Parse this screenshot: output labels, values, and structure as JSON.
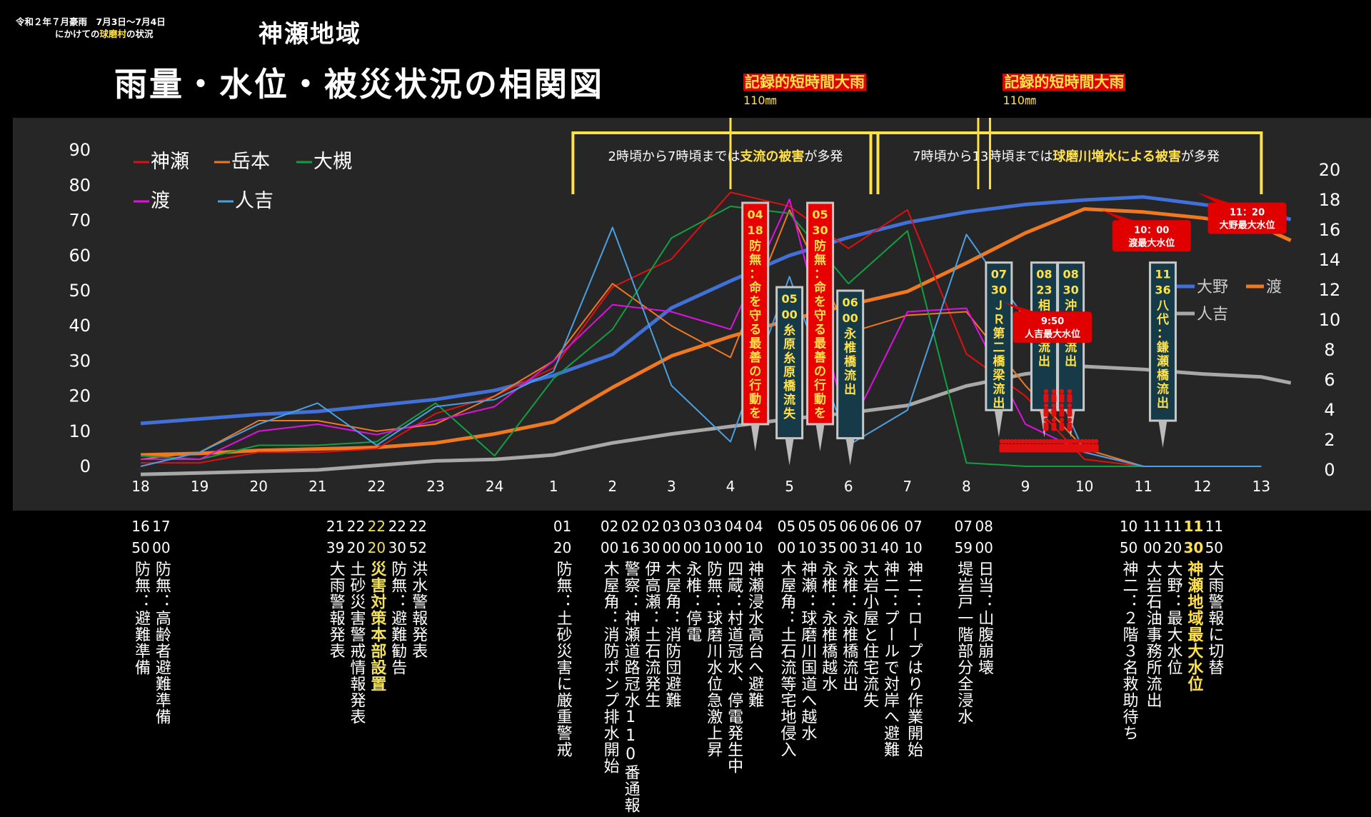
{
  "header": {
    "line1": "令和２年７月豪雨　7月3日～7月4日",
    "line2_prefix": "にかけての",
    "line2_highlight": "球磨村",
    "line2_suffix": "の状況",
    "region": "神瀬地域",
    "title": "雨量・水位・被災状況の相関図"
  },
  "colors": {
    "神瀬": "#e01010",
    "岳本": "#f07820",
    "大槻": "#10a040",
    "渡_rain": "#e010e0",
    "人吉_rain": "#4aa0e0",
    "大野": "#4070d8",
    "渡_level": "#f07820",
    "人吉_level": "#a8a8a8",
    "highlight_yellow": "#ffe14a",
    "callout_red": "#e00000",
    "plot_bg": "#262626"
  },
  "chart_data": {
    "type": "line",
    "x": [
      "18",
      "19",
      "20",
      "21",
      "22",
      "23",
      "24",
      "1",
      "2",
      "3",
      "4",
      "5",
      "6",
      "7",
      "8",
      "9",
      "10",
      "11",
      "12",
      "13"
    ],
    "left_axis": {
      "label": "",
      "ylim": [
        0,
        90
      ],
      "ticks": [
        "0",
        "10",
        "20",
        "30",
        "40",
        "50",
        "60",
        "70",
        "80",
        "90"
      ]
    },
    "right_axis": {
      "label": "",
      "ylim": [
        0,
        21
      ],
      "ticks": [
        "0",
        "2",
        "4",
        "6",
        "8",
        "10",
        "12",
        "14",
        "16",
        "18",
        "20"
      ]
    },
    "rain_series": [
      {
        "name": "神瀬",
        "axis": "left",
        "points": [
          [
            0,
            1
          ],
          [
            1,
            1
          ],
          [
            2,
            4
          ],
          [
            3,
            4
          ],
          [
            4,
            5
          ],
          [
            5,
            15
          ],
          [
            6,
            20
          ],
          [
            7,
            28
          ],
          [
            8,
            51
          ],
          [
            9,
            59
          ],
          [
            10,
            78
          ],
          [
            11,
            74
          ],
          [
            12,
            62
          ],
          [
            13,
            73
          ],
          [
            14,
            32
          ],
          [
            15,
            20
          ],
          [
            16,
            2
          ],
          [
            17,
            0
          ],
          [
            18,
            0
          ],
          [
            19,
            0
          ]
        ]
      },
      {
        "name": "岳本",
        "axis": "left",
        "points": [
          [
            0,
            2
          ],
          [
            1,
            4
          ],
          [
            2,
            13
          ],
          [
            3,
            13
          ],
          [
            4,
            10
          ],
          [
            5,
            12
          ],
          [
            6,
            20
          ],
          [
            7,
            30
          ],
          [
            8,
            52
          ],
          [
            9,
            40
          ],
          [
            10,
            31
          ],
          [
            11,
            73
          ],
          [
            12,
            38
          ],
          [
            13,
            43
          ],
          [
            14,
            44
          ],
          [
            15,
            23
          ],
          [
            16,
            5
          ],
          [
            17,
            0
          ],
          [
            18,
            0
          ],
          [
            19,
            0
          ]
        ]
      },
      {
        "name": "大槻",
        "axis": "left",
        "points": [
          [
            0,
            3
          ],
          [
            1,
            2
          ],
          [
            2,
            6
          ],
          [
            3,
            6
          ],
          [
            4,
            7
          ],
          [
            5,
            18
          ],
          [
            6,
            3
          ],
          [
            7,
            25
          ],
          [
            8,
            39
          ],
          [
            9,
            65
          ],
          [
            10,
            74
          ],
          [
            11,
            72
          ],
          [
            12,
            52
          ],
          [
            13,
            67
          ],
          [
            14,
            1
          ],
          [
            15,
            0
          ],
          [
            16,
            0
          ],
          [
            17,
            0
          ],
          [
            18,
            0
          ],
          [
            19,
            0
          ]
        ]
      },
      {
        "name": "渡",
        "axis": "left",
        "points": [
          [
            0,
            2
          ],
          [
            1,
            2
          ],
          [
            2,
            10
          ],
          [
            3,
            12
          ],
          [
            4,
            9
          ],
          [
            5,
            13
          ],
          [
            6,
            17
          ],
          [
            7,
            30
          ],
          [
            8,
            46
          ],
          [
            9,
            44
          ],
          [
            10,
            39
          ],
          [
            11,
            76
          ],
          [
            12,
            10
          ],
          [
            13,
            44
          ],
          [
            14,
            45
          ],
          [
            15,
            12
          ],
          [
            16,
            4
          ],
          [
            17,
            0
          ],
          [
            18,
            0
          ],
          [
            19,
            0
          ]
        ]
      },
      {
        "name": "人吉",
        "axis": "left",
        "points": [
          [
            0,
            0
          ],
          [
            1,
            4
          ],
          [
            2,
            12
          ],
          [
            3,
            18
          ],
          [
            4,
            6
          ],
          [
            5,
            17
          ],
          [
            6,
            19
          ],
          [
            7,
            27
          ],
          [
            8,
            68
          ],
          [
            9,
            23
          ],
          [
            10,
            7
          ],
          [
            11,
            54
          ],
          [
            12,
            6
          ],
          [
            13,
            16
          ],
          [
            14,
            66
          ],
          [
            15,
            42
          ],
          [
            16,
            4
          ],
          [
            17,
            0
          ],
          [
            18,
            0
          ],
          [
            19,
            0
          ]
        ]
      }
    ],
    "level_series": [
      {
        "name": "大野",
        "axis": "right",
        "points": [
          [
            0,
            3.1
          ],
          [
            1,
            3.4
          ],
          [
            2,
            3.7
          ],
          [
            3,
            3.9
          ],
          [
            4,
            4.3
          ],
          [
            5,
            4.7
          ],
          [
            6,
            5.3
          ],
          [
            7,
            6.3
          ],
          [
            8,
            7.7
          ],
          [
            9,
            10.8
          ],
          [
            10,
            12.6
          ],
          [
            11,
            14.3
          ],
          [
            12,
            15.5
          ],
          [
            13,
            16.5
          ],
          [
            14,
            17.2
          ],
          [
            15,
            17.7
          ],
          [
            16,
            18.0
          ],
          [
            17,
            18.2
          ],
          [
            18,
            17.7
          ],
          [
            19,
            17.2
          ],
          [
            19.5,
            16.7
          ]
        ]
      },
      {
        "name": "渡",
        "axis": "right",
        "points": [
          [
            0,
            1.0
          ],
          [
            1,
            1.1
          ],
          [
            2,
            1.3
          ],
          [
            3,
            1.4
          ],
          [
            4,
            1.5
          ],
          [
            5,
            1.8
          ],
          [
            6,
            2.4
          ],
          [
            7,
            3.2
          ],
          [
            8,
            5.5
          ],
          [
            9,
            7.6
          ],
          [
            10,
            8.9
          ],
          [
            11,
            10.0
          ],
          [
            12,
            11.0
          ],
          [
            13,
            11.9
          ],
          [
            14,
            13.8
          ],
          [
            15,
            15.8
          ],
          [
            16,
            17.4
          ],
          [
            17,
            17.2
          ],
          [
            18,
            16.8
          ],
          [
            19,
            16.2
          ],
          [
            19.5,
            15.3
          ]
        ]
      },
      {
        "name": "人吉",
        "axis": "right",
        "points": [
          [
            0,
            -0.3
          ],
          [
            1,
            -0.2
          ],
          [
            2,
            -0.1
          ],
          [
            3,
            0.0
          ],
          [
            4,
            0.3
          ],
          [
            5,
            0.6
          ],
          [
            6,
            0.7
          ],
          [
            7,
            1.0
          ],
          [
            8,
            1.8
          ],
          [
            9,
            2.4
          ],
          [
            10,
            2.9
          ],
          [
            11,
            3.4
          ],
          [
            12,
            3.8
          ],
          [
            13,
            4.3
          ],
          [
            14,
            5.6
          ],
          [
            15,
            6.4
          ],
          [
            16,
            6.9
          ],
          [
            17,
            6.7
          ],
          [
            18,
            6.4
          ],
          [
            19,
            6.2
          ],
          [
            19.5,
            5.8
          ]
        ]
      }
    ],
    "legend_rain": [
      "神瀬",
      "岳本",
      "大槻",
      "渡",
      "人吉"
    ],
    "legend_level": [
      "大野",
      "渡",
      "人吉"
    ],
    "heavy_rain": [
      {
        "label": "記録的短時間大雨",
        "amount": "110㎜",
        "x": [
          10
        ]
      },
      {
        "label": "記録的短時間大雨",
        "amount": "110㎜",
        "x": [
          14.2,
          14.4
        ]
      }
    ],
    "periods": [
      {
        "pre": "2時頃から7時頃までは",
        "hl": "支流の被害",
        "post": "が多発",
        "x0": 7.45,
        "x1": 12.5
      },
      {
        "pre": "7時頃から13時頃までは",
        "hl": "球磨川増水による被害",
        "post": "が多発",
        "x0": 12.5,
        "x1": 19.0
      }
    ],
    "red_boxes": [
      {
        "text": "04 18 防無：命を守る最善の行動を",
        "x": 10.42,
        "y_top": 75,
        "y_bottom": 12
      },
      {
        "text": "05 30 防無：命を守る最善の行動を",
        "x": 11.52,
        "y_top": 75,
        "y_bottom": 12
      }
    ],
    "teal_boxes": [
      {
        "text": "05 00 糸原糸原橋流失",
        "x": 11.0,
        "y_top": 51,
        "y_bottom": 8
      },
      {
        "text": "06 00 永椎橋流出",
        "x": 12.03,
        "y_top": 50,
        "y_bottom": 8
      },
      {
        "text": "07 30 ＪＲ第二橋梁流出",
        "x": 14.55,
        "y_top": 58,
        "y_bottom": 16
      },
      {
        "text": "08 23 相良橋流出",
        "x": 15.32,
        "y_top": 58,
        "y_bottom": 16
      },
      {
        "text": "08 30 沖鶴橋流出",
        "x": 15.77,
        "y_top": 58,
        "y_bottom": 16
      },
      {
        "text": "11 36 八代：鎌瀬橋流出",
        "x": 17.33,
        "y_top": 58,
        "y_bottom": 13
      }
    ],
    "max_level_callouts": [
      {
        "time": "9:50",
        "label": "人吉最大水位",
        "x": 15.46,
        "y": 40
      },
      {
        "time": "10：00",
        "label": "渡最大水位",
        "x": 17.14,
        "y": 66
      },
      {
        "time": "11：20",
        "label": "大野最大水位",
        "x": 18.76,
        "y": 71
      }
    ],
    "people_icons": {
      "row_count": 28,
      "stack_count": 12,
      "x_start": 14.6,
      "x_end": 16.2
    }
  },
  "timeline": [
    {
      "time": "16\n50",
      "text": "防無：避難準備",
      "x": 0.0
    },
    {
      "time": "17\n00",
      "text": "防無：高齢者避難準備",
      "x": 0.35
    },
    {
      "time": "21\n39",
      "text": "大雨警報発表",
      "x": 3.3
    },
    {
      "time": "22\n20",
      "text": "土砂災害警戒情報発表",
      "x": 3.65
    },
    {
      "time": "22\n20",
      "text": "災害対策本部設置",
      "x": 4.0,
      "style": "y"
    },
    {
      "time": "22\n30",
      "text": "防無：避難勧告",
      "x": 4.35
    },
    {
      "time": "22\n52",
      "text": "洪水警報発表",
      "x": 4.7
    },
    {
      "time": "01\n20",
      "text": "防無：土砂災害に厳重警戒",
      "x": 7.15
    },
    {
      "time": "02\n00",
      "text": "木屋角：消防ポンプ排水開始",
      "x": 7.95
    },
    {
      "time": "02\n16",
      "text": "警察：神瀬道路冠水110番通報",
      "x": 8.3
    },
    {
      "time": "02\n30",
      "text": "伊高瀬：土石流発生",
      "x": 8.65
    },
    {
      "time": "03\n00",
      "text": "木屋角：消防団避難",
      "x": 9.0
    },
    {
      "time": "03\n00",
      "text": "永椎：停電",
      "x": 9.35
    },
    {
      "time": "03\n10",
      "text": "防無：球磨川水位急激上昇",
      "x": 9.7
    },
    {
      "time": "04\n00",
      "text": "四蔵：村道冠水、停電発生中",
      "x": 10.05
    },
    {
      "time": "04\n10",
      "text": "神瀬浸水高台へ避難",
      "x": 10.4
    },
    {
      "time": "05\n00",
      "text": "木屋角：土石流等宅地侵入",
      "x": 10.95
    },
    {
      "time": "05\n10",
      "text": "神瀬：球磨川国道へ越水",
      "x": 11.3
    },
    {
      "time": "05\n35",
      "text": "永椎：永椎橋越水",
      "x": 11.65
    },
    {
      "time": "06\n00",
      "text": "永椎：永椎橋流出",
      "x": 12.0
    },
    {
      "time": "06\n31",
      "text": "大岩小屋と住宅流失",
      "x": 12.35
    },
    {
      "time": "06\n40",
      "text": "神二：プールで対岸へ避難",
      "x": 12.7
    },
    {
      "time": "07\n10",
      "text": "神二：ロープはり作業開始",
      "x": 13.1
    },
    {
      "time": "07\n59",
      "text": "堤岩戸一階部分全浸水",
      "x": 13.95
    },
    {
      "time": "08\n00",
      "text": "日当：山腹崩壊",
      "x": 14.3
    },
    {
      "time": "10\n50",
      "text": "神二：２階３名救助待ち",
      "x": 16.75
    },
    {
      "time": "11\n00",
      "text": "大岩石油事務所流出",
      "x": 17.15
    },
    {
      "time": "11\n20",
      "text": "大野：最大水位",
      "x": 17.5
    },
    {
      "time": "11\n30",
      "text": "神瀬地域最大水位",
      "x": 17.85,
      "style": "y2"
    },
    {
      "time": "11\n50",
      "text": "大雨警報に切替",
      "x": 18.2
    }
  ]
}
